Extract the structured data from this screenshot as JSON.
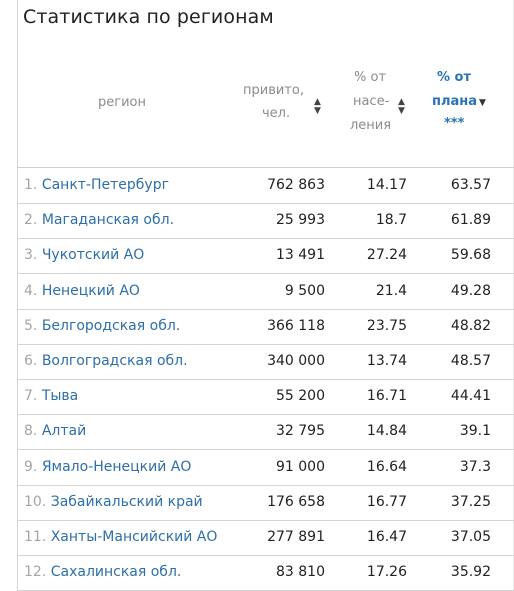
{
  "title": "Статистика по регионам",
  "columns": {
    "region": "регион",
    "vaccinated_line1": "привито,",
    "vaccinated_line2": "чел.",
    "pop_line1": "% от",
    "pop_line2": "насе-",
    "pop_line3": "ления",
    "plan_line1": "% от",
    "plan_line2": "плана",
    "plan_line3": "***"
  },
  "icons": {
    "sort_both": "sort-both-icon",
    "sort_desc": "sort-desc-icon"
  },
  "colors": {
    "link": "#2e6fa8",
    "active_header": "#2b73b8",
    "muted": "#8c8c8c"
  },
  "rows": [
    {
      "num": "1.",
      "region": "Санкт-Петербург",
      "vaccinated": "762 863",
      "pct_population": "14.17",
      "pct_plan": "63.57"
    },
    {
      "num": "2.",
      "region": "Магаданская обл.",
      "vaccinated": "25 993",
      "pct_population": "18.7",
      "pct_plan": "61.89"
    },
    {
      "num": "3.",
      "region": "Чукотский АО",
      "vaccinated": "13 491",
      "pct_population": "27.24",
      "pct_plan": "59.68"
    },
    {
      "num": "4.",
      "region": "Ненецкий АО",
      "vaccinated": "9 500",
      "pct_population": "21.4",
      "pct_plan": "49.28"
    },
    {
      "num": "5.",
      "region": "Белгородская обл.",
      "vaccinated": "366 118",
      "pct_population": "23.75",
      "pct_plan": "48.82"
    },
    {
      "num": "6.",
      "region": "Волгоградская обл.",
      "vaccinated": "340 000",
      "pct_population": "13.74",
      "pct_plan": "48.57"
    },
    {
      "num": "7.",
      "region": "Тыва",
      "vaccinated": "55 200",
      "pct_population": "16.71",
      "pct_plan": "44.41"
    },
    {
      "num": "8.",
      "region": "Алтай",
      "vaccinated": "32 795",
      "pct_population": "14.84",
      "pct_plan": "39.1"
    },
    {
      "num": "9.",
      "region": "Ямало-Ненецкий АО",
      "vaccinated": "91 000",
      "pct_population": "16.64",
      "pct_plan": "37.3"
    },
    {
      "num": "10.",
      "region": "Забайкальский край",
      "vaccinated": "176 658",
      "pct_population": "16.77",
      "pct_plan": "37.25"
    },
    {
      "num": "11.",
      "region": "Ханты-Мансийский АО",
      "vaccinated": "277 891",
      "pct_population": "16.47",
      "pct_plan": "37.05"
    },
    {
      "num": "12.",
      "region": "Сахалинская обл.",
      "vaccinated": "83 810",
      "pct_population": "17.26",
      "pct_plan": "35.92"
    }
  ]
}
